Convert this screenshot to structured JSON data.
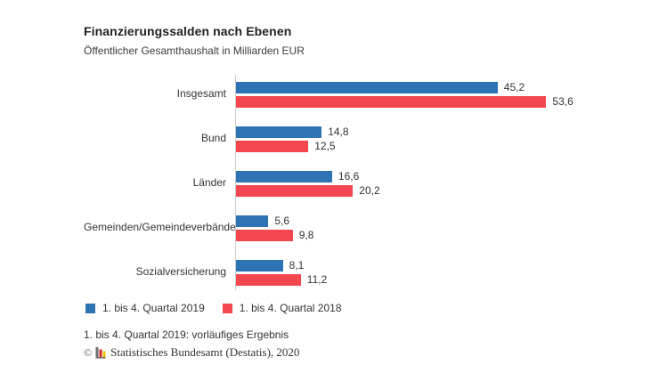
{
  "header": {
    "title": "Finanzierungssalden nach Ebenen",
    "subtitle": "Öffentlicher Gesamthaushalt in Milliarden EUR"
  },
  "chart_data": {
    "type": "bar",
    "orientation": "horizontal",
    "title": "Finanzierungssalden nach Ebenen",
    "subtitle": "Öffentlicher Gesamthaushalt in Milliarden EUR",
    "categories": [
      "Insgesamt",
      "Bund",
      "Länder",
      "Gemeinden/Gemeindeverbände",
      "Sozialversicherung"
    ],
    "series": [
      {
        "name": "1. bis 4. Quartal 2019",
        "color": "#2e74b5",
        "values": [
          45.2,
          14.8,
          16.6,
          5.6,
          8.1
        ],
        "labels": [
          "45,2",
          "14,8",
          "16,6",
          "5,6",
          "8,1"
        ]
      },
      {
        "name": "1. bis 4. Quartal 2018",
        "color": "#f4464f",
        "values": [
          53.6,
          12.5,
          20.2,
          9.8,
          11.2
        ],
        "labels": [
          "53,6",
          "12,5",
          "20,2",
          "9,8",
          "11,2"
        ]
      }
    ],
    "xlim": [
      0,
      60
    ],
    "unit": "Milliarden EUR",
    "grid": false,
    "legend_position": "bottom"
  },
  "footer": {
    "note": "1. bis 4. Quartal 2019: vorläufiges Ergebnis",
    "copyright_symbol": "©",
    "copyright_text": "Statistisches Bundesamt (Destatis), 2020"
  },
  "colors": {
    "axis_line": "#cccccc",
    "text": "#333333",
    "background": "#ffffff"
  }
}
